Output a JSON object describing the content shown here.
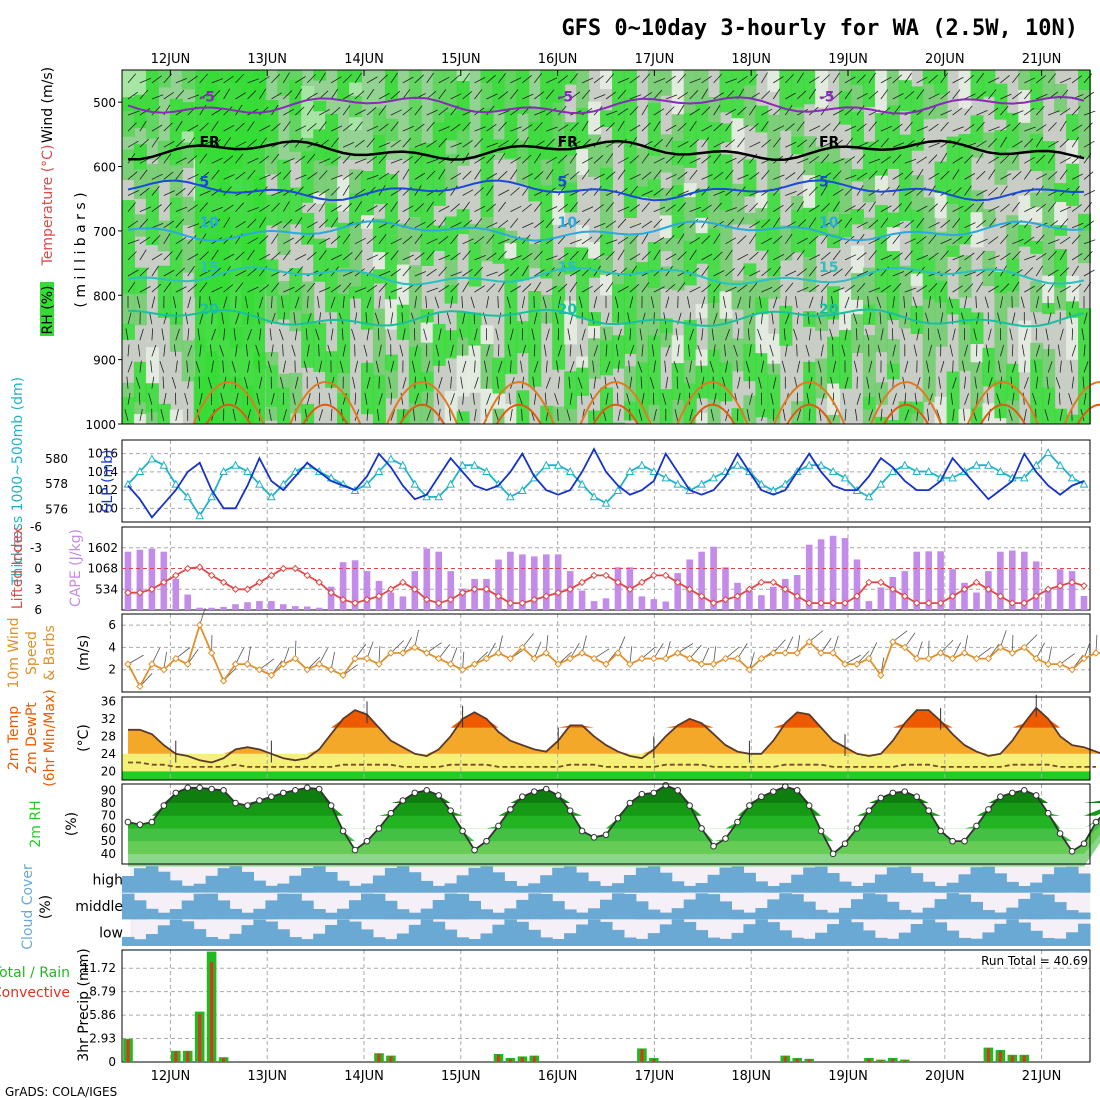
{
  "title": "GFS 0~10day 3-hourly for WA (2.5W, 10N)",
  "credit": "GrADS: COLA/IGES",
  "run_total": "Run Total = 40.69",
  "colors": {
    "rh_green": "#33dd33",
    "rh_gray": "#c8cdc6",
    "slp": "#1533c8",
    "thickness": "#22b3c8",
    "cape": "#c38ce8",
    "lifted_index": "#e04848",
    "wind10m": "#e0902a",
    "temp_max": "#ee5a00",
    "temp_band": "#f4a82a",
    "temp_low": "#f4f078",
    "dewpt": "#7a4a2a",
    "rh2m": "#22cc22",
    "cloud": "#6aa9d4",
    "rain": "#22b822",
    "convective": "#dd3322"
  },
  "chart_data": [
    {
      "panel": "upper-air",
      "type": "heatmap",
      "x_tick_labels": [
        "12JUN",
        "13JUN",
        "14JUN",
        "15JUN",
        "16JUN",
        "17JUN",
        "18JUN",
        "19JUN",
        "20JUN",
        "21JUN"
      ],
      "ylabel_parts": [
        "RH (%)",
        "Temperature (°C)",
        "Wind (m/s)",
        "( m i l l i b a r s )"
      ],
      "y_ticks": [
        500,
        600,
        700,
        800,
        900,
        1000
      ],
      "ylim": [
        450,
        1000
      ],
      "isotherms": [
        {
          "label": "-5",
          "pressure": 505,
          "color": "#8a2ab8"
        },
        {
          "label": "FR",
          "pressure": 575,
          "color": "#000000"
        },
        {
          "label": "5",
          "pressure": 637,
          "color": "#1a4ad8"
        },
        {
          "label": "10",
          "pressure": 700,
          "color": "#2aa8e0"
        },
        {
          "label": "15",
          "pressure": 770,
          "color": "#2ac0c0"
        },
        {
          "label": "20",
          "pressure": 835,
          "color": "#1abfa0"
        }
      ]
    },
    {
      "panel": "slp-thickness",
      "type": "line",
      "ylabel_left": "Thickness 1000~500mb (dm)",
      "ylabel_right": "SLP (mb)",
      "slp_ticks": [
        1010,
        1012,
        1014,
        1016
      ],
      "thk_ticks": [
        576,
        578,
        580
      ],
      "slp_ylim": [
        1008.5,
        1017.5
      ],
      "thk_ylim": [
        575,
        581.5
      ],
      "series": [
        {
          "name": "SLP",
          "axis": "right",
          "values": [
            1012.5,
            1011,
            1009,
            1010.5,
            1012,
            1014,
            1015,
            1012,
            1010,
            1010,
            1012.5,
            1015.5,
            1013,
            1012,
            1013.5,
            1015,
            1014,
            1013,
            1012.5,
            1012,
            1013.5,
            1016,
            1014.5,
            1012.5,
            1011,
            1011.5,
            1013.5,
            1015.5,
            1014,
            1012.5,
            1012,
            1012.5,
            1014,
            1016,
            1013.5,
            1012,
            1011.5,
            1012,
            1014,
            1016.5,
            1014,
            1012.5,
            1011.5,
            1012,
            1013,
            1016,
            1014,
            1012,
            1011.5,
            1012,
            1013.5,
            1016,
            1014,
            1012,
            1011.5,
            1012,
            1014,
            1016,
            1014,
            1012.5,
            1012,
            1012,
            1013.5,
            1015.5,
            1014.5,
            1013,
            1012,
            1012,
            1013,
            1015.5,
            1014,
            1012.5,
            1011,
            1012,
            1013,
            1016,
            1014,
            1012.5,
            1011.5,
            1012.5,
            1013
          ]
        },
        {
          "name": "Thickness",
          "axis": "left",
          "values": [
            578,
            579,
            580,
            579.5,
            578,
            577,
            575.5,
            577,
            579,
            579.5,
            579,
            578,
            577,
            578,
            579,
            579.5,
            579,
            578.5,
            578,
            577.5,
            578,
            579,
            580,
            579.5,
            578,
            577,
            577,
            578,
            579.5,
            579.5,
            579,
            578,
            577,
            577.5,
            578.5,
            579.5,
            579.5,
            579,
            578,
            577,
            576.5,
            577.5,
            579,
            579.5,
            579,
            578.5,
            578,
            577.5,
            578,
            578.5,
            579,
            579.5,
            579,
            578,
            577.5,
            578,
            579,
            579.5,
            579.5,
            579,
            578.5,
            577.5,
            577,
            578,
            579,
            579.5,
            579,
            579,
            578.5,
            578.5,
            579,
            579.5,
            579.5,
            579,
            578.5,
            578.5,
            579.5,
            580.5,
            579.5,
            578.5,
            578
          ]
        }
      ]
    },
    {
      "panel": "cape-li",
      "type": "bar",
      "ylabel_left": "Lifted Index",
      "ylabel_right": "CAPE (J/kg)",
      "li_ticks": [
        "-6",
        "-3",
        "0",
        "3",
        "6"
      ],
      "cape_ticks": [
        534,
        1068,
        1602
      ],
      "cape_ylim": [
        0,
        2136
      ],
      "li_ylim": [
        6,
        -6
      ],
      "series": [
        {
          "name": "CAPE",
          "values": [
            1500,
            1550,
            1580,
            1500,
            800,
            400,
            60,
            60,
            80,
            150,
            200,
            230,
            230,
            150,
            100,
            90,
            60,
            600,
            1230,
            1280,
            1000,
            750,
            450,
            350,
            1000,
            1580,
            1500,
            1000,
            550,
            800,
            800,
            1300,
            1500,
            1430,
            1380,
            1430,
            1430,
            1000,
            500,
            230,
            300,
            1100,
            1100,
            350,
            280,
            220,
            950,
            1300,
            1500,
            1630,
            1100,
            700,
            480,
            380,
            600,
            800,
            900,
            1680,
            1820,
            1910,
            1850,
            1300,
            230,
            580,
            850,
            1000,
            1500,
            1510,
            1510,
            1050,
            700,
            450,
            1000,
            1500,
            1530,
            1500,
            1250,
            500,
            1050,
            1000,
            360
          ]
        },
        {
          "name": "Lifted Index",
          "values": [
            -3.5,
            -3.5,
            -3,
            -2,
            -1,
            0,
            0.2,
            -1,
            -2,
            -3,
            -3,
            -2,
            -1,
            0,
            0,
            -1,
            -2,
            -3.5,
            -4.5,
            -5,
            -4.5,
            -4,
            -3,
            -2,
            -3,
            -4.5,
            -5,
            -4.5,
            -3.5,
            -3,
            -3,
            -4,
            -5,
            -5,
            -4.5,
            -4,
            -3.5,
            -3,
            -2,
            -1,
            -1,
            -2,
            -3,
            -2,
            -1,
            -1,
            -2,
            -3,
            -4,
            -5,
            -4.5,
            -4,
            -3,
            -2,
            -2,
            -3,
            -4,
            -5,
            -5,
            -5,
            -5,
            -4,
            -2,
            -2,
            -3,
            -4,
            -5,
            -5,
            -5,
            -4,
            -3,
            -2,
            -3,
            -4,
            -5,
            -5,
            -4,
            -3,
            -2.5,
            -2,
            -2.5
          ]
        }
      ]
    },
    {
      "panel": "wind10m",
      "type": "line",
      "ylabel": "10m Wind Speed & Barbs (m/s)",
      "y_ticks": [
        2,
        4,
        6
      ],
      "ylim": [
        0,
        7
      ],
      "series": [
        {
          "name": "10m Wind Speed",
          "values": [
            2.5,
            0.5,
            2.5,
            2,
            3,
            2.5,
            6,
            3.5,
            1,
            2.5,
            2.5,
            2,
            1.5,
            2.5,
            3,
            2,
            2.5,
            2,
            1.5,
            3,
            3,
            2.5,
            3.5,
            3.5,
            4,
            3.5,
            3,
            2.5,
            2,
            2.5,
            3,
            3.5,
            3,
            4,
            3,
            3.5,
            2.5,
            3,
            3.5,
            3,
            2.5,
            3.5,
            2.5,
            3,
            3,
            3,
            3.5,
            3,
            2.5,
            2.5,
            3,
            3,
            2,
            3,
            3.5,
            3.5,
            3.5,
            4.5,
            3.5,
            3.5,
            2.5,
            2.5,
            3,
            1.5,
            4.5,
            4,
            3,
            3,
            3.5,
            3,
            3.5,
            3,
            3,
            4,
            3.5,
            4,
            3,
            2.5,
            2.5,
            2,
            3,
            3.5,
            3.5
          ]
        }
      ]
    },
    {
      "panel": "temperature",
      "type": "area",
      "ylabel": "2m Temp 2m DewPt (6hr Min/Max) (°C)",
      "y_ticks": [
        20,
        24,
        28,
        32,
        36
      ],
      "ylim": [
        18,
        37
      ],
      "series": [
        {
          "name": "2m Temp",
          "values": [
            29.5,
            29.5,
            28.5,
            26,
            24,
            23.5,
            22.5,
            22,
            23,
            25,
            25.5,
            25,
            24,
            23,
            22.5,
            23,
            25,
            28.5,
            32,
            34,
            33,
            30,
            27,
            25.5,
            24,
            23.5,
            25,
            28,
            32,
            33.5,
            32,
            29,
            27,
            26,
            25,
            24.5,
            27,
            30.5,
            30.5,
            28,
            26,
            24.5,
            23.5,
            23,
            25,
            28,
            30.5,
            32,
            31,
            28.5,
            26,
            24.5,
            24,
            24,
            27,
            31,
            33.5,
            33,
            30,
            27,
            25.5,
            24,
            23.5,
            24,
            27,
            31,
            34,
            34,
            31.5,
            28.5,
            26,
            24.5,
            23.5,
            24,
            27,
            31,
            34.5,
            32,
            28,
            26,
            25.5,
            24.5,
            23.5
          ]
        },
        {
          "name": "2m DewPt",
          "values": [
            22,
            22,
            21.5,
            21.5,
            21,
            21,
            21,
            21,
            21,
            21.5,
            21,
            21,
            21,
            21,
            21,
            21,
            21,
            21,
            21.5,
            21.5,
            21.5,
            21.5,
            21.5,
            21,
            21,
            21,
            21,
            21.5,
            21.5,
            21.5,
            21.5,
            21,
            21,
            21,
            21,
            21,
            21,
            21.5,
            21.5,
            21.5,
            21,
            21,
            21,
            21,
            21,
            21.5,
            21.5,
            21.5,
            21.5,
            21,
            21,
            21,
            21,
            21,
            21,
            21.5,
            21.5,
            21.5,
            21.5,
            21,
            21,
            21,
            21,
            21,
            21,
            21.5,
            21.5,
            21.5,
            21,
            21,
            21,
            21,
            21,
            21,
            21.5,
            21.5,
            21.5,
            21.5,
            21,
            21,
            21,
            21
          ]
        }
      ]
    },
    {
      "panel": "rh2m",
      "type": "area",
      "ylabel": "2m RH (%)",
      "y_ticks": [
        40,
        50,
        60,
        70,
        80,
        90
      ],
      "ylim": [
        32,
        95
      ],
      "series": [
        {
          "name": "2m RH",
          "values": [
            65,
            63,
            65,
            78,
            88,
            92,
            92,
            91,
            90,
            80,
            78,
            82,
            85,
            88,
            90,
            92,
            91,
            78,
            58,
            43,
            50,
            60,
            72,
            82,
            88,
            90,
            86,
            74,
            58,
            43,
            50,
            62,
            75,
            85,
            89,
            91,
            86,
            74,
            58,
            53,
            55,
            68,
            80,
            87,
            88,
            94,
            90,
            78,
            60,
            46,
            52,
            65,
            78,
            85,
            89,
            93,
            90,
            78,
            58,
            40,
            48,
            60,
            74,
            84,
            88,
            89,
            85,
            74,
            58,
            50,
            50,
            62,
            75,
            85,
            88,
            90,
            86,
            72,
            56,
            42,
            48,
            65,
            75,
            85,
            85
          ]
        }
      ]
    },
    {
      "panel": "cloud-cover",
      "type": "heatmap",
      "ylabel": "Cloud Cover (%)",
      "rows": [
        "high",
        "middle",
        "low"
      ]
    },
    {
      "panel": "precip",
      "type": "bar",
      "ylabel": "3hr Precip (mm)",
      "ylabel_left": "Total / Rain",
      "ylabel_left2": "Convective",
      "y_ticks": [
        "0",
        "2.93",
        "5.86",
        "8.79",
        "11.72"
      ],
      "ylim": [
        0,
        14
      ],
      "series": [
        {
          "name": "Total",
          "values": [
            2.9,
            0,
            0,
            0,
            1.4,
            1.4,
            6.3,
            13.8,
            0.6,
            0,
            0,
            0,
            0,
            0,
            0,
            0,
            0,
            0,
            0,
            0,
            0,
            1.1,
            0.8,
            0,
            0,
            0,
            0,
            0,
            0,
            0,
            0,
            1.0,
            0.5,
            0.7,
            0.8,
            0,
            0,
            0,
            0,
            0,
            0,
            0,
            0,
            1.7,
            0.5,
            0,
            0,
            0,
            0,
            0,
            0,
            0,
            0,
            0,
            0,
            0.8,
            0.5,
            0.4,
            0,
            0,
            0,
            0,
            0.5,
            0.3,
            0.5,
            0.3,
            0,
            0,
            0,
            0,
            0,
            0,
            1.8,
            1.5,
            0.9,
            0.9,
            0,
            0,
            0,
            0,
            0
          ]
        },
        {
          "name": "Convective",
          "values": [
            2.8,
            0,
            0,
            0,
            1.3,
            1.3,
            6.0,
            12.5,
            0.5,
            0,
            0,
            0,
            0,
            0,
            0,
            0,
            0,
            0,
            0,
            0,
            0,
            1.0,
            0.7,
            0,
            0,
            0,
            0,
            0,
            0,
            0,
            0,
            0.9,
            0.4,
            0.6,
            0.7,
            0,
            0,
            0,
            0,
            0,
            0,
            0,
            0,
            1.6,
            0.4,
            0,
            0,
            0,
            0,
            0,
            0,
            0,
            0,
            0,
            0,
            0.7,
            0.4,
            0.3,
            0,
            0,
            0,
            0,
            0.4,
            0.2,
            0.4,
            0.2,
            0,
            0,
            0,
            0,
            0,
            0,
            1.7,
            1.4,
            0.8,
            0.8,
            0,
            0,
            0,
            0,
            0
          ]
        }
      ]
    }
  ]
}
